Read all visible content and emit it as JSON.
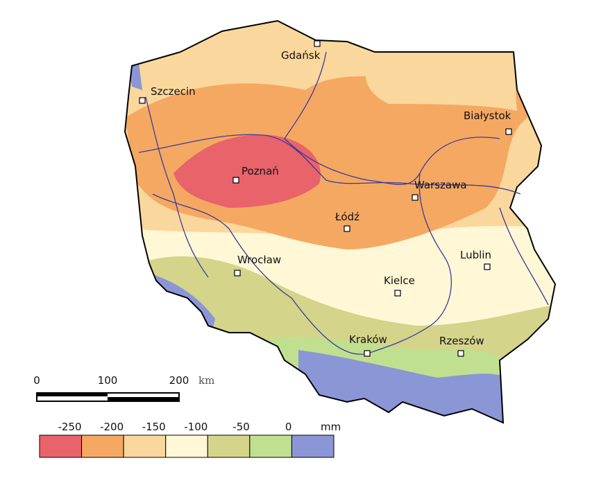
{
  "cities": [
    "Szczecin",
    "Gdańsk",
    "Białystok",
    "Poznań",
    "Warszawa",
    "Łódź",
    "Wrocław",
    "Lublin",
    "Kielce",
    "Kraków",
    "Rzeszów"
  ],
  "scale_bar": {
    "labels": [
      "0",
      "100",
      "200"
    ],
    "unit": "km"
  },
  "legend": {
    "labels": [
      "-250",
      "-200",
      "-150",
      "-100",
      "-50",
      "0"
    ],
    "unit": "mm",
    "colors": [
      "#e8636a",
      "#f5a862",
      "#fad79c",
      "#fff7d6",
      "#d4d48a",
      "#c0e090",
      "#8a96d6"
    ]
  }
}
